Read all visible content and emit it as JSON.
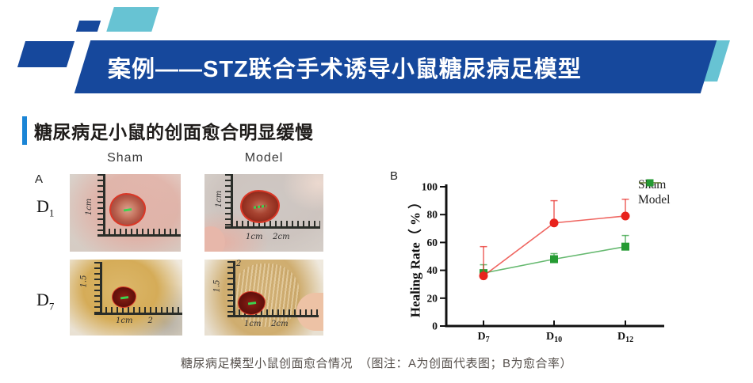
{
  "slide": {
    "title": "案例——STZ联合手术诱导小鼠糖尿病足模型",
    "section_heading": "糖尿病足小鼠的创面愈合明显缓慢",
    "caption": "糖尿病足模型小鼠创面愈合情况　（图注：A为创面代表图；B为愈合率）"
  },
  "panel_a": {
    "label": "A",
    "col_headers": [
      "Sham",
      "Model"
    ],
    "row_labels": [
      {
        "base": "D",
        "sub": "1"
      },
      {
        "base": "D",
        "sub": "7"
      }
    ],
    "photos": [
      {
        "id": "sham-d1",
        "left_label": "1cm",
        "bottom_label": "",
        "top_label": ""
      },
      {
        "id": "model-d1",
        "left_label": "1cm",
        "bottom_label": "1cm    2cm",
        "top_label": ""
      },
      {
        "id": "sham-d7",
        "left_label": "1.5",
        "bottom_label": "1cm      2",
        "top_label": ""
      },
      {
        "id": "model-d7",
        "left_label": "1.5",
        "bottom_label": "1cm    2cm",
        "top_label": "2"
      }
    ]
  },
  "panel_b": {
    "label": "B"
  },
  "chart_data": {
    "type": "line",
    "title": "",
    "xlabel": "",
    "ylabel": "Healing Rate（ % ）",
    "categories": [
      "D7",
      "D10",
      "D12"
    ],
    "categories_display": [
      {
        "base": "D",
        "sub": "7"
      },
      {
        "base": "D",
        "sub": "10"
      },
      {
        "base": "D",
        "sub": "12"
      }
    ],
    "yticks": [
      0,
      20,
      40,
      60,
      80,
      100
    ],
    "ylim": [
      0,
      100
    ],
    "grid": false,
    "legend_position": "top-right",
    "series": [
      {
        "name": "Sham",
        "marker": "circle",
        "color": "#e8231d",
        "values": [
          36,
          74,
          79
        ],
        "error_upper": [
          21,
          16,
          12
        ]
      },
      {
        "name": "Model",
        "marker": "square",
        "color": "#259b33",
        "values": [
          38,
          48,
          57
        ],
        "error_upper": [
          6,
          4,
          8
        ]
      }
    ]
  },
  "colors": {
    "banner_blue": "#16489c",
    "accent_teal": "#67c3d3",
    "heading_blue": "#1b85d6"
  }
}
